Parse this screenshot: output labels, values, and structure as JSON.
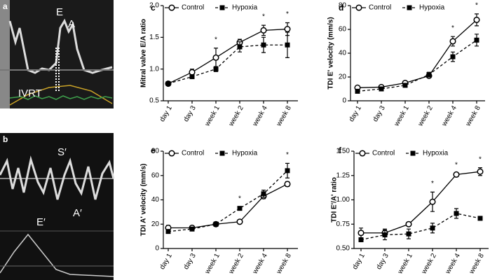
{
  "images": [
    {
      "panel_label": "a",
      "labels": [
        "E",
        "A",
        "IVRT"
      ]
    },
    {
      "panel_label": "b",
      "labels": [
        "S′",
        "E′",
        "A′"
      ]
    }
  ],
  "chart_data": [
    {
      "type": "line",
      "panel_label": "c",
      "ylabel": "Mitral valve E/A ratio",
      "categories": [
        "day 1",
        "day 3",
        "week 1",
        "week 2",
        "week 4",
        "week 8"
      ],
      "ylim": [
        0.5,
        2.0
      ],
      "yticks": [
        0.5,
        {
          "value": 1,
          "label": "1.0"
        },
        1.5,
        {
          "value": 2,
          "label": "2.0"
        }
      ],
      "series": [
        {
          "name": "Control",
          "color": "#000000",
          "linestyle": "solid",
          "marker": "circle",
          "values": [
            0.77,
            0.95,
            1.18,
            1.42,
            1.61,
            1.63
          ],
          "errors": [
            0.02,
            0.05,
            0.15,
            0.05,
            0.08,
            0.1
          ]
        },
        {
          "name": "Hypoxia",
          "color": "#000000",
          "linestyle": "dashed",
          "marker": "square",
          "values": [
            0.77,
            0.88,
            1.0,
            1.35,
            1.38,
            1.38
          ],
          "errors": [
            0.02,
            0.03,
            0.04,
            0.08,
            0.12,
            0.2
          ]
        }
      ],
      "annotations": [
        {
          "text": "*",
          "x": "week 1"
        },
        {
          "text": "*",
          "x": "week 4"
        },
        {
          "text": "*",
          "x": "week 8"
        }
      ]
    },
    {
      "type": "line",
      "panel_label": "d",
      "ylabel": "TDI E' velocity (mm/s)",
      "categories": [
        "day 1",
        "day 3",
        "week 1",
        "week 2",
        "week 4",
        "week 8"
      ],
      "ylim": [
        0,
        80
      ],
      "yticks": [
        0,
        20,
        40,
        60,
        80
      ],
      "series": [
        {
          "name": "Control",
          "color": "#000000",
          "linestyle": "solid",
          "marker": "circle",
          "values": [
            11,
            11.5,
            15,
            21,
            50,
            68
          ],
          "errors": [
            1,
            1,
            1,
            1,
            4,
            5
          ]
        },
        {
          "name": "Hypoxia",
          "color": "#000000",
          "linestyle": "dashed",
          "marker": "square",
          "values": [
            8,
            10,
            13,
            22,
            37,
            51
          ],
          "errors": [
            1,
            1,
            1,
            2,
            4,
            5
          ]
        }
      ],
      "annotations": [
        {
          "text": "*",
          "x": "week 4"
        },
        {
          "text": "*",
          "x": "week 8"
        }
      ]
    },
    {
      "type": "line",
      "panel_label": "e",
      "ylabel": "TDI A' velocity (mm/s)",
      "categories": [
        "day 1",
        "day 3",
        "week 1",
        "week 2",
        "week 4",
        "week 8"
      ],
      "ylim": [
        0,
        80
      ],
      "yticks": [
        0,
        20,
        40,
        60,
        80
      ],
      "series": [
        {
          "name": "Control",
          "color": "#000000",
          "linestyle": "solid",
          "marker": "circle",
          "values": [
            17,
            17,
            20,
            22,
            43,
            53
          ],
          "errors": [
            2,
            1,
            1,
            1,
            2,
            2
          ]
        },
        {
          "name": "Hypoxia",
          "color": "#000000",
          "linestyle": "dashed",
          "marker": "square",
          "values": [
            14,
            16,
            20,
            33,
            45,
            64
          ],
          "errors": [
            1,
            1,
            1,
            1,
            3,
            6
          ]
        }
      ],
      "annotations": [
        {
          "text": "*",
          "x": "week 2"
        },
        {
          "text": "*",
          "x": "week 8"
        }
      ]
    },
    {
      "type": "line",
      "panel_label": "f",
      "ylabel": "TDI E'/A' ratio",
      "categories": [
        "day 1",
        "day 3",
        "week 1",
        "week 2",
        "week 4",
        "week 8"
      ],
      "ylim": [
        0.5,
        1.5
      ],
      "yticks": [
        {
          "value": 0.5,
          "label": "0.50"
        },
        {
          "value": 0.75,
          "label": "0.75"
        },
        {
          "value": 1,
          "label": "1.00"
        },
        {
          "value": 1.25,
          "label": "1.25"
        },
        {
          "value": 1.5,
          "label": "1.50"
        }
      ],
      "series": [
        {
          "name": "Control",
          "color": "#000000",
          "linestyle": "solid",
          "marker": "circle",
          "values": [
            0.66,
            0.66,
            0.75,
            0.98,
            1.26,
            1.29
          ],
          "errors": [
            0.05,
            0.04,
            0.01,
            0.1,
            0.01,
            0.04
          ]
        },
        {
          "name": "Hypoxia",
          "color": "#000000",
          "linestyle": "dashed",
          "marker": "square",
          "values": [
            0.59,
            0.64,
            0.65,
            0.71,
            0.86,
            0.81
          ],
          "errors": [
            0.02,
            0.05,
            0.05,
            0.05,
            0.05,
            0.01
          ]
        }
      ],
      "annotations": [
        {
          "text": "*",
          "x": "week 2"
        },
        {
          "text": "*",
          "x": "week 4"
        },
        {
          "text": "*",
          "x": "week 8"
        }
      ]
    }
  ]
}
